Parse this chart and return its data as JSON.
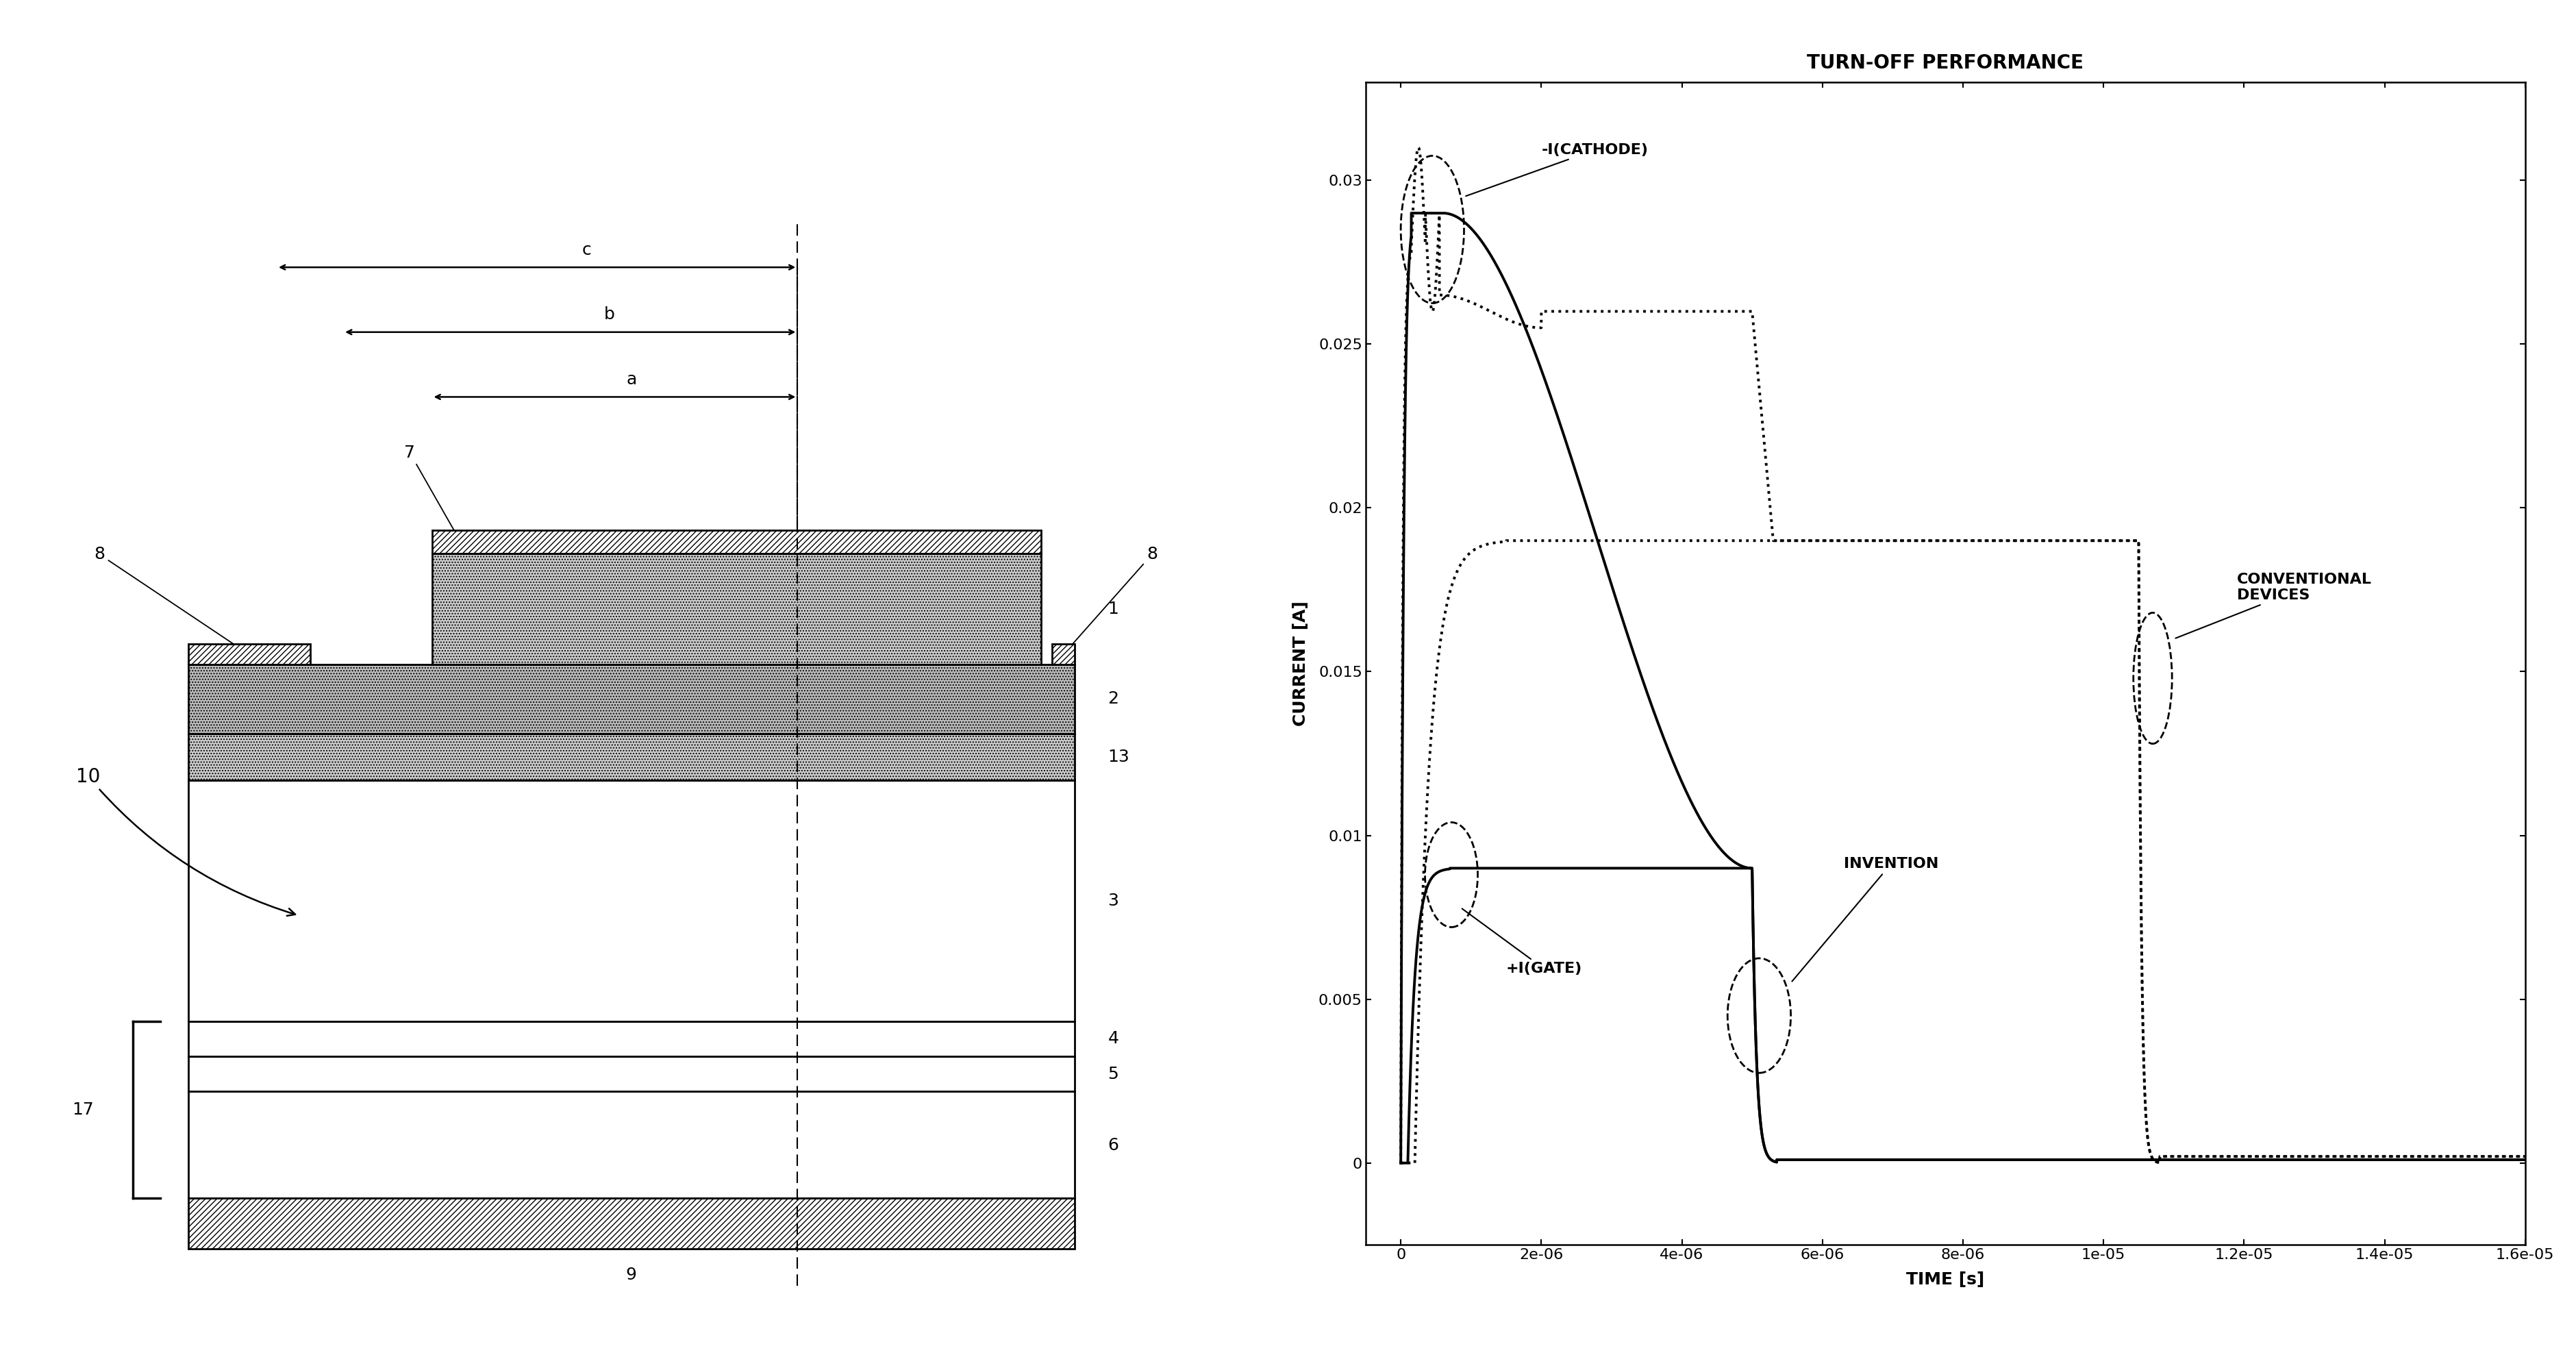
{
  "title": "TURN-OFF PERFORMANCE",
  "xlabel": "TIME [s]",
  "ylabel": "CURRENT [A]",
  "xlim": [
    -5e-07,
    1.6e-05
  ],
  "ylim": [
    -0.0025,
    0.033
  ],
  "yticks": [
    0,
    0.005,
    0.01,
    0.015,
    0.02,
    0.025,
    0.03
  ],
  "xticks": [
    0,
    2e-06,
    4e-06,
    6e-06,
    8e-06,
    1e-05,
    1.2e-05,
    1.4e-05,
    1.6e-05
  ],
  "xtick_labels": [
    "0",
    "2e-06",
    "4e-06",
    "6e-06",
    "8e-06",
    "1e-05",
    "1.2e-05",
    "1.4e-05",
    "1.6e-05"
  ],
  "bg_color": "#ffffff",
  "label_cathode": "-I(CATHODE)",
  "label_gate": "+I(GATE)",
  "label_invention": "INVENTION",
  "label_conventional": "CONVENTIONAL\nDEVICES"
}
